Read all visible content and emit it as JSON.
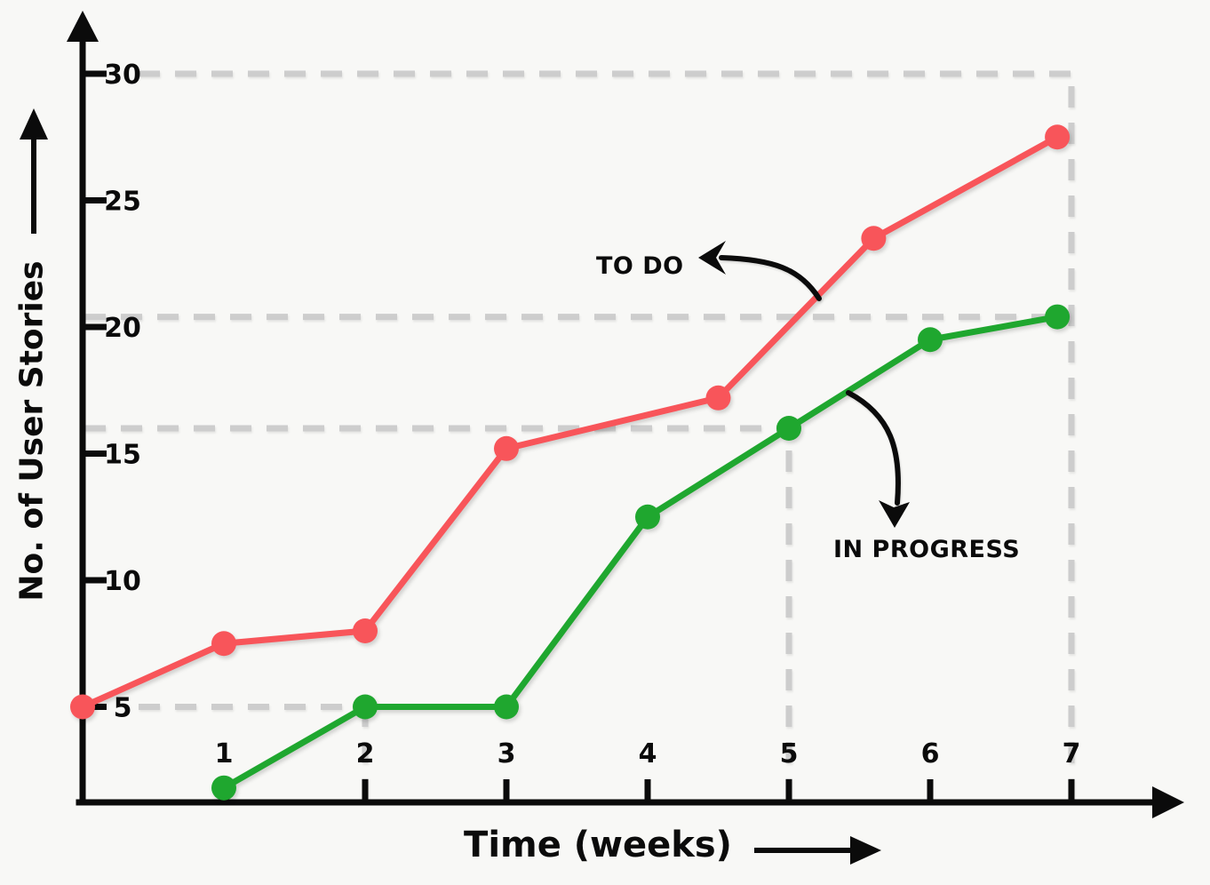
{
  "chart_data": {
    "type": "line",
    "title": "",
    "xlabel": "Time (weeks)",
    "ylabel": "No. of User Stories",
    "x_ticks": [
      1,
      2,
      3,
      4,
      5,
      6,
      7
    ],
    "y_ticks": [
      5,
      10,
      15,
      20,
      25,
      30
    ],
    "xlim": [
      0,
      7.8
    ],
    "ylim": [
      0,
      32
    ],
    "grid": "dashed reference guides only (no full grid)",
    "legend_position": "inline hand-drawn arrow annotations",
    "background": "#f8f8f6",
    "axis_color": "#0b0b0b",
    "grid_color": "#cdcdcd",
    "series": [
      {
        "name": "TO DO",
        "color": "#f8555a",
        "points": [
          [
            0,
            5
          ],
          [
            1,
            7.5
          ],
          [
            2,
            8
          ],
          [
            3,
            15.2
          ],
          [
            4.5,
            17.2
          ],
          [
            5.6,
            23.5
          ],
          [
            6.9,
            27.5
          ]
        ]
      },
      {
        "name": "IN PROGRESS",
        "color": "#1fa72f",
        "points": [
          [
            1,
            1.8
          ],
          [
            2,
            5
          ],
          [
            3,
            5
          ],
          [
            4,
            12.5
          ],
          [
            5,
            16
          ],
          [
            6,
            19.5
          ],
          [
            6.9,
            20.4
          ]
        ]
      }
    ],
    "guides": [
      {
        "axis": "y",
        "value": 30,
        "from_x": 0,
        "to_x": 7
      },
      {
        "axis": "x",
        "value": 7,
        "from_y": 0,
        "to_y": 30
      },
      {
        "axis": "y",
        "value": 20.4,
        "from_x": 0,
        "to_x": 6.9
      },
      {
        "axis": "y",
        "value": 16,
        "from_x": 0,
        "to_x": 5
      },
      {
        "axis": "x",
        "value": 5,
        "from_y": 0,
        "to_y": 16
      },
      {
        "axis": "y",
        "value": 5,
        "from_x": 0,
        "to_x": 2
      },
      {
        "axis": "x",
        "value": 2,
        "from_y": 0,
        "to_y": 5
      }
    ],
    "annotations": [
      {
        "label": "TO DO",
        "series": "TO DO"
      },
      {
        "label": "IN PROGRESS",
        "series": "IN PROGRESS"
      }
    ]
  }
}
